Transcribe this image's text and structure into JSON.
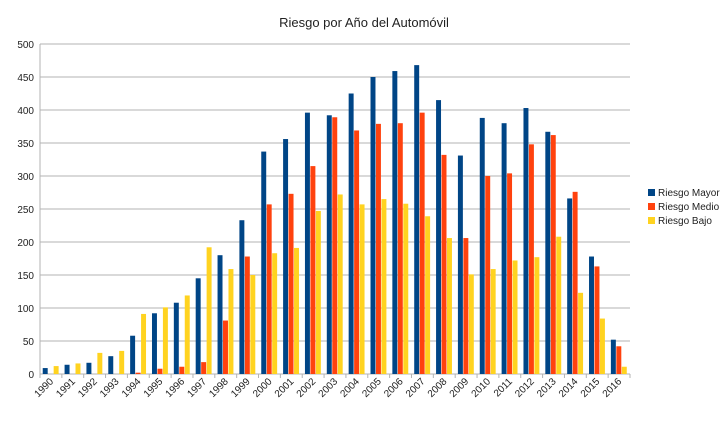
{
  "chart_data": {
    "type": "bar",
    "title": "Riesgo por Año del Automóvil",
    "xlabel": "",
    "ylabel": "",
    "ylim": [
      0,
      500
    ],
    "yticks": [
      0,
      50,
      100,
      150,
      200,
      250,
      300,
      350,
      400,
      450,
      500
    ],
    "grid": true,
    "legend_position": "right",
    "categories": [
      "1990",
      "1991",
      "1992",
      "1993",
      "1994",
      "1995",
      "1996",
      "1997",
      "1998",
      "1999",
      "2000",
      "2001",
      "2002",
      "2003",
      "2004",
      "2005",
      "2006",
      "2007",
      "2008",
      "2009",
      "2010",
      "2011",
      "2012",
      "2013",
      "2014",
      "2015",
      "2016"
    ],
    "series": [
      {
        "name": "Riesgo Mayor",
        "color": "#004586",
        "values": [
          9,
          14,
          17,
          27,
          58,
          92,
          108,
          145,
          180,
          233,
          337,
          356,
          396,
          392,
          425,
          450,
          459,
          468,
          415,
          331,
          388,
          380,
          403,
          367,
          266,
          178,
          52
        ]
      },
      {
        "name": "Riesgo Medio",
        "color": "#ff420e",
        "values": [
          0,
          0,
          0,
          0,
          2,
          8,
          11,
          18,
          81,
          178,
          257,
          273,
          315,
          389,
          369,
          379,
          380,
          396,
          332,
          206,
          300,
          304,
          348,
          362,
          276,
          163,
          42
        ]
      },
      {
        "name": "Riesgo Bajo",
        "color": "#ffd320",
        "values": [
          12,
          16,
          32,
          35,
          91,
          101,
          119,
          192,
          159,
          150,
          183,
          191,
          247,
          272,
          257,
          265,
          258,
          239,
          206,
          151,
          159,
          172,
          177,
          208,
          123,
          84,
          11
        ]
      }
    ]
  }
}
